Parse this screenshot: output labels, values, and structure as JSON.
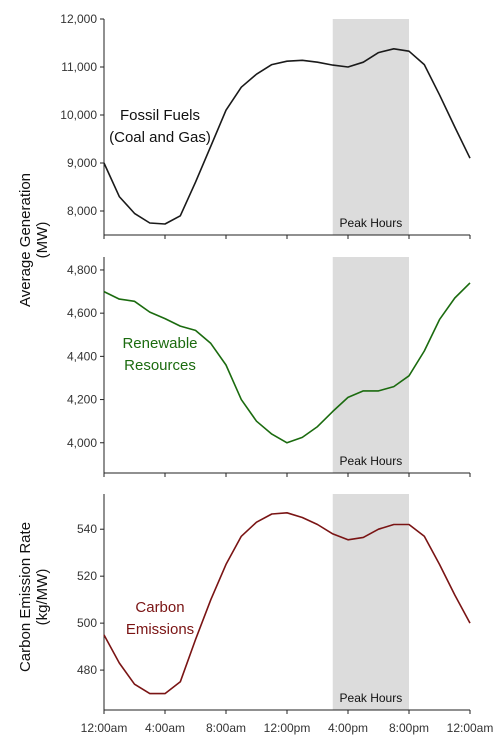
{
  "chart_data": [
    {
      "type": "line",
      "id": "fossil",
      "annotation": [
        "Fossil Fuels",
        "(Coal and Gas)"
      ],
      "color": "#1a1a1a",
      "shade_label": "Peak Hours",
      "shade_x": [
        15,
        20
      ],
      "ylim": [
        7500,
        12000
      ],
      "yticks": [
        8000,
        9000,
        10000,
        11000,
        12000
      ],
      "ytick_labels": [
        "8,000",
        "9,000",
        "10,000",
        "11,000",
        "12,000"
      ],
      "x": [
        0,
        1,
        2,
        3,
        4,
        5,
        6,
        7,
        8,
        9,
        10,
        11,
        12,
        13,
        14,
        15,
        16,
        17,
        18,
        19,
        20,
        21,
        22,
        23,
        24
      ],
      "values": [
        9000,
        8300,
        7950,
        7750,
        7730,
        7900,
        8600,
        9350,
        10100,
        10580,
        10850,
        11050,
        11120,
        11140,
        11100,
        11040,
        11000,
        11100,
        11300,
        11380,
        11330,
        11050,
        10420,
        9750,
        9100
      ]
    },
    {
      "type": "line",
      "id": "renewable",
      "annotation": [
        "Renewable",
        "Resources"
      ],
      "color": "#1b6b0f",
      "shade_label": "Peak Hours",
      "shade_x": [
        15,
        20
      ],
      "ylim": [
        3860,
        4860
      ],
      "yticks": [
        4000,
        4200,
        4400,
        4600,
        4800
      ],
      "ytick_labels": [
        "4,000",
        "4,200",
        "4,400",
        "4,600",
        "4,800"
      ],
      "x": [
        0,
        1,
        2,
        3,
        4,
        5,
        6,
        7,
        8,
        9,
        10,
        11,
        12,
        13,
        14,
        15,
        16,
        17,
        18,
        19,
        20,
        21,
        22,
        23,
        24
      ],
      "values": [
        4700,
        4665,
        4655,
        4605,
        4575,
        4540,
        4520,
        4460,
        4360,
        4200,
        4100,
        4040,
        4000,
        4025,
        4075,
        4145,
        4210,
        4240,
        4240,
        4260,
        4310,
        4425,
        4570,
        4670,
        4740
      ]
    },
    {
      "type": "line",
      "id": "carbon",
      "annotation": [
        "Carbon",
        "Emissions"
      ],
      "color": "#7a1414",
      "shade_label": "Peak Hours",
      "shade_x": [
        15,
        20
      ],
      "ylim": [
        463,
        555
      ],
      "yticks": [
        480,
        500,
        520,
        540
      ],
      "ytick_labels": [
        "480",
        "500",
        "520",
        "540"
      ],
      "x": [
        0,
        1,
        2,
        3,
        4,
        5,
        6,
        7,
        8,
        9,
        10,
        11,
        12,
        13,
        14,
        15,
        16,
        17,
        18,
        19,
        20,
        21,
        22,
        23,
        24
      ],
      "values": [
        495,
        483,
        474,
        470,
        470,
        475,
        493,
        510,
        525,
        537,
        543,
        546.5,
        547,
        545,
        542,
        538,
        535.5,
        536.5,
        540,
        542,
        542,
        537,
        525,
        512,
        500
      ]
    }
  ],
  "axes": {
    "xlim": [
      0,
      24
    ],
    "xticks": [
      0,
      4,
      8,
      12,
      16,
      20,
      24
    ],
    "xtick_labels": [
      "12:00am",
      "4:00am",
      "8:00am",
      "12:00pm",
      "4:00pm",
      "8:00pm",
      "12:00am"
    ],
    "ylabel_top": [
      "Average Generation",
      "(MW)"
    ],
    "ylabel_bottom": [
      "Carbon Emission Rate",
      "(kg/MW)"
    ]
  },
  "colors": {
    "shade": "#dcdcdc",
    "axis": "#222222",
    "tick_text": "#333333",
    "label_text": "#111111"
  }
}
